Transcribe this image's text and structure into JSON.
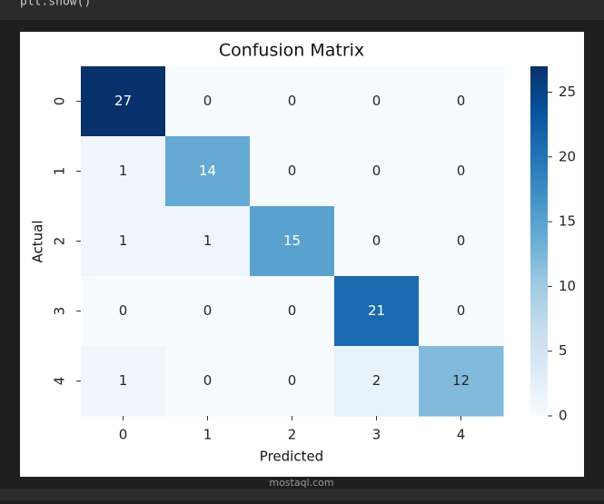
{
  "code": "plt.show()",
  "watermark": "mostaql.com",
  "chart_data": {
    "type": "heatmap",
    "title": "Confusion Matrix",
    "x_label": "Predicted",
    "y_label": "Actual",
    "x_categories": [
      "0",
      "1",
      "2",
      "3",
      "4"
    ],
    "y_categories": [
      "0",
      "1",
      "2",
      "3",
      "4"
    ],
    "values": [
      [
        27,
        0,
        0,
        0,
        0
      ],
      [
        1,
        14,
        0,
        0,
        0
      ],
      [
        1,
        1,
        15,
        0,
        0
      ],
      [
        0,
        0,
        0,
        21,
        0
      ],
      [
        1,
        0,
        0,
        2,
        12
      ]
    ],
    "cmap": "Blues",
    "colorbar": {
      "vlim": [
        0,
        27
      ],
      "ticks": [
        0,
        5,
        10,
        15,
        20,
        25
      ]
    }
  }
}
